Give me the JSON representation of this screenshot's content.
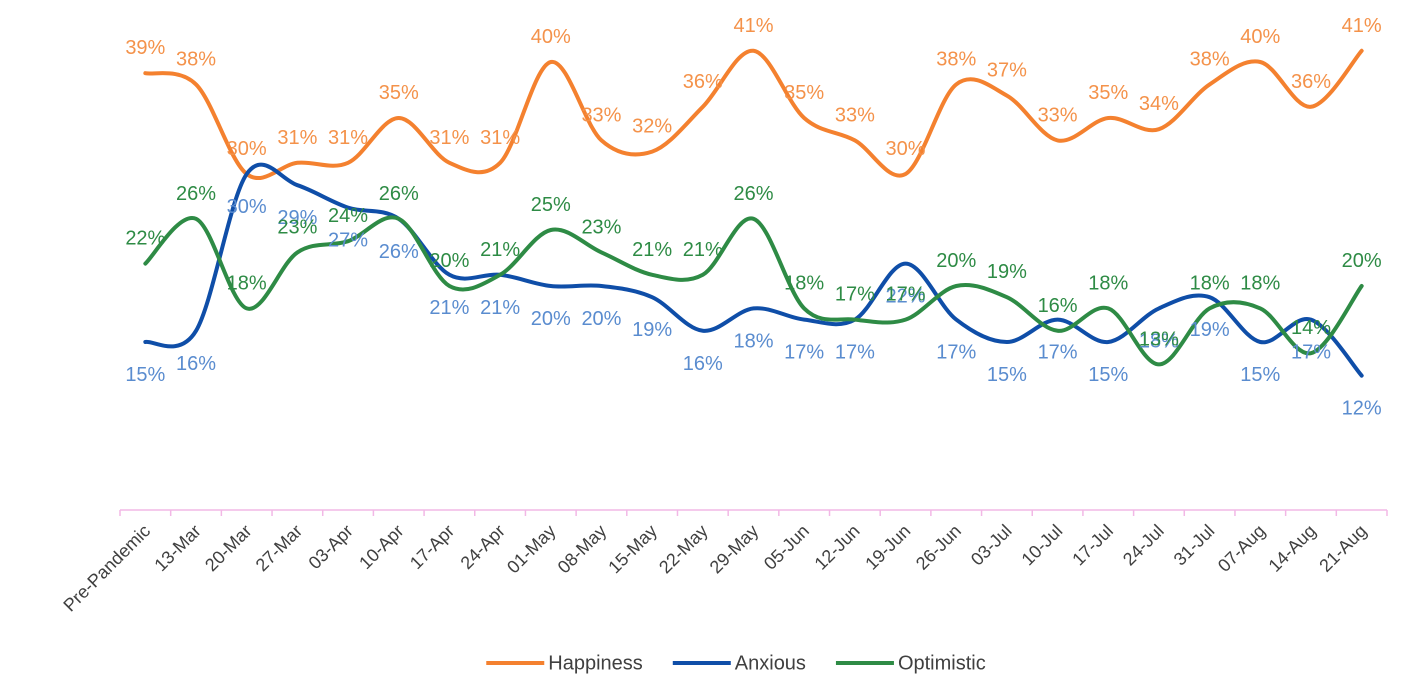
{
  "chart_data": {
    "type": "line",
    "categories": [
      "Pre-Pandemic",
      "13-Mar",
      "20-Mar",
      "27-Mar",
      "03-Apr",
      "10-Apr",
      "17-Apr",
      "24-Apr",
      "01-May",
      "08-May",
      "15-May",
      "22-May",
      "29-May",
      "05-Jun",
      "12-Jun",
      "19-Jun",
      "26-Jun",
      "03-Jul",
      "10-Jul",
      "17-Jul",
      "24-Jul",
      "31-Jul",
      "07-Aug",
      "14-Aug",
      "21-Aug"
    ],
    "ylim": [
      0,
      45
    ],
    "axis_color": "#f2b8e6",
    "legend": "bottom",
    "series": [
      {
        "name": "Happiness",
        "color": "#f4812f",
        "label_color": "#f4924a",
        "values": [
          39,
          38,
          30,
          31,
          31,
          35,
          31,
          31,
          40,
          33,
          32,
          36,
          41,
          35,
          33,
          30,
          38,
          37,
          33,
          35,
          34,
          38,
          40,
          36,
          41
        ],
        "value_labels": [
          "39%",
          "38%",
          "30%",
          "31%",
          "31%",
          "35%",
          "31%",
          "31%",
          "40%",
          "33%",
          "32%",
          "36%",
          "41%",
          "35%",
          "33%",
          "30%",
          "38%",
          "37%",
          "33%",
          "35%",
          "34%",
          "38%",
          "40%",
          "36%",
          "41%"
        ]
      },
      {
        "name": "Anxious",
        "color": "#0f4ea8",
        "label_color": "#5a8ccf",
        "values": [
          15,
          16,
          30,
          29,
          27,
          26,
          21,
          21,
          20,
          20,
          19,
          16,
          18,
          17,
          17,
          22,
          17,
          15,
          17,
          15,
          18,
          19,
          15,
          17,
          12
        ],
        "value_labels": [
          "15%",
          "16%",
          "30%",
          "29%",
          "27%",
          "26%",
          "21%",
          "21%",
          "20%",
          "20%",
          "19%",
          "16%",
          "18%",
          "17%",
          "17%",
          "22%",
          "17%",
          "15%",
          "17%",
          "15%",
          "18%",
          "19%",
          "15%",
          "17%",
          "12%"
        ]
      },
      {
        "name": "Optimistic",
        "color": "#2e8b45",
        "label_color": "#2e8b45",
        "values": [
          22,
          26,
          18,
          23,
          24,
          26,
          20,
          21,
          25,
          23,
          21,
          21,
          26,
          18,
          17,
          17,
          20,
          19,
          16,
          18,
          13,
          18,
          18,
          14,
          20
        ],
        "value_labels": [
          "22%",
          "26%",
          "18%",
          "23%",
          "24%",
          "26%",
          "20%",
          "21%",
          "25%",
          "23%",
          "21%",
          "21%",
          "26%",
          "18%",
          "17%",
          "17%",
          "20%",
          "19%",
          "16%",
          "18%",
          "13%",
          "18%",
          "18%",
          "14%",
          "20%"
        ]
      }
    ]
  }
}
